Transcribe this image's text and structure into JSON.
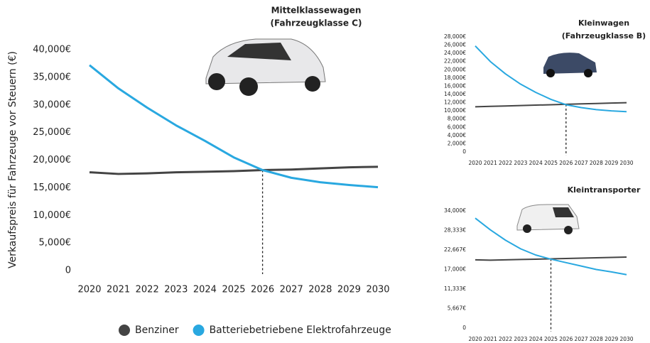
{
  "chart_data": [
    {
      "type": "line",
      "title": "Mittelklassewagen",
      "subtitle": "(Fahrzeugklasse C)",
      "ylabel": "Verkaufspreis für Fahrzeuge vor Steuern  (€)",
      "categories": [
        "2020",
        "2021",
        "2022",
        "2023",
        "2024",
        "2025",
        "2026",
        "2027",
        "2028",
        "2029",
        "2030"
      ],
      "series": [
        {
          "name": "Benziner",
          "color": "#444444",
          "values": [
            17800,
            17500,
            17600,
            17800,
            17900,
            18000,
            18200,
            18300,
            18500,
            18700,
            18800
          ]
        },
        {
          "name": "Batteriebetriebene Elektrofahrzeuge",
          "color": "#29a8e0",
          "values": [
            37200,
            33000,
            29500,
            26300,
            23500,
            20500,
            18200,
            16800,
            16000,
            15500,
            15100
          ]
        }
      ],
      "ylim": [
        0,
        40000
      ],
      "yticks": [
        0,
        {
          "value": 5000,
          "label": "5,000€"
        },
        {
          "value": 10000,
          "label": "10,000€"
        },
        {
          "value": 15000,
          "label": "15,000€"
        },
        {
          "value": 20000,
          "label": "20,000€"
        },
        {
          "value": 25000,
          "label": "25,000€"
        },
        {
          "value": 30000,
          "label": "30,000€"
        },
        {
          "value": 35000,
          "label": "35,000€"
        },
        {
          "value": 40000,
          "label": "40,000€"
        }
      ],
      "crossover": "2026",
      "legend": "bottom"
    },
    {
      "type": "line",
      "title": "Kleinwagen",
      "subtitle": "(Fahrzeugklasse B)",
      "categories": [
        "2020",
        "2021",
        "2022",
        "2023",
        "2024",
        "2025",
        "2026",
        "2027",
        "2028",
        "2029",
        "2030"
      ],
      "series": [
        {
          "color": "#444444",
          "values": [
            11000,
            11100,
            11200,
            11300,
            11400,
            11500,
            11600,
            11700,
            11800,
            11900,
            12000
          ]
        },
        {
          "color": "#29a8e0",
          "values": [
            25800,
            22000,
            19000,
            16500,
            14500,
            12800,
            11500,
            10800,
            10300,
            10000,
            9800
          ]
        }
      ],
      "ylim": [
        0,
        28000
      ],
      "yticks": [
        0,
        {
          "value": 2000,
          "label": "2,000€"
        },
        {
          "value": 4000,
          "label": "4,000€"
        },
        {
          "value": 6000,
          "label": "6,000€"
        },
        {
          "value": 8000,
          "label": "8,000€"
        },
        {
          "value": 10000,
          "label": "10,000€"
        },
        {
          "value": 12000,
          "label": "12,000€"
        },
        {
          "value": 14000,
          "label": "14,000€"
        },
        {
          "value": 16000,
          "label": "16,000€"
        },
        {
          "value": 18000,
          "label": "18,000€"
        },
        {
          "value": 20000,
          "label": "20,000€"
        },
        {
          "value": 22000,
          "label": "22,000€"
        },
        {
          "value": 24000,
          "label": "24,000€"
        },
        {
          "value": 26000,
          "label": "26,000€"
        },
        {
          "value": 28000,
          "label": "28,000€"
        }
      ],
      "crossover": "2026"
    },
    {
      "type": "line",
      "title": "Kleintransporter",
      "categories": [
        "2020",
        "2021",
        "2022",
        "2023",
        "2024",
        "2025",
        "2026",
        "2027",
        "2028",
        "2029",
        "2030"
      ],
      "series": [
        {
          "color": "#444444",
          "values": [
            19800,
            19700,
            19800,
            19900,
            20000,
            20100,
            20200,
            20300,
            20400,
            20500,
            20600
          ]
        },
        {
          "color": "#29a8e0",
          "values": [
            31900,
            28500,
            25500,
            23000,
            21200,
            20000,
            19000,
            18000,
            17000,
            16300,
            15500
          ]
        }
      ],
      "ylim": [
        0,
        34000
      ],
      "yticks": [
        0,
        {
          "value": 5667,
          "label": "5,667€"
        },
        {
          "value": 11333,
          "label": "11,333€"
        },
        {
          "value": 17000,
          "label": "17,000€"
        },
        {
          "value": 22667,
          "label": "22,667€"
        },
        {
          "value": 28333,
          "label": "28,333€"
        },
        {
          "value": 34000,
          "label": "34,000€"
        }
      ],
      "crossover": "2025"
    }
  ]
}
